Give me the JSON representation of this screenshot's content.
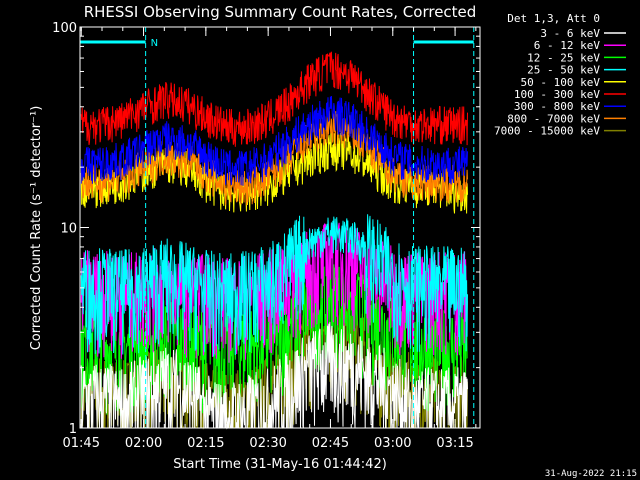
{
  "chart_data": {
    "type": "line",
    "title": "RHESSI Observing Summary Count Rates, Corrected",
    "xlabel": "Start Time (31-May-16 01:44:42)",
    "ylabel": "Corrected Count Rate (s⁻¹ detector⁻¹)",
    "yscale": "log",
    "ylim": [
      1,
      100
    ],
    "xlim": [
      "01:44:42",
      "03:21:00"
    ],
    "x_ticks": [
      "01:45",
      "02:00",
      "02:15",
      "02:30",
      "02:45",
      "03:00",
      "03:15"
    ],
    "y_ticks": [
      "1",
      "10",
      "100"
    ],
    "grid": false,
    "legend_position": "right",
    "legend_header": "Det 1,3, Att 0",
    "x": [
      "01:45",
      "01:50",
      "01:55",
      "02:00",
      "02:05",
      "02:10",
      "02:15",
      "02:20",
      "02:25",
      "02:30",
      "02:35",
      "02:40",
      "02:45",
      "02:50",
      "02:55",
      "03:00",
      "03:05",
      "03:10",
      "03:15",
      "03:18"
    ],
    "series": [
      {
        "name": "3 - 6 keV",
        "color": "#ffffff",
        "values": [
          1.4,
          1.4,
          1.3,
          1.5,
          1.7,
          1.6,
          1.2,
          1.1,
          1.2,
          1.3,
          1.6,
          2.0,
          2.2,
          2.1,
          1.8,
          1.5,
          1.3,
          1.3,
          1.3,
          1.3
        ]
      },
      {
        "name": "6 - 12 keV",
        "color": "#ff00ff",
        "values": [
          5.0,
          5.0,
          4.8,
          5.0,
          5.2,
          5.0,
          4.8,
          4.6,
          4.8,
          5.0,
          5.5,
          6.5,
          7.0,
          6.8,
          6.0,
          5.2,
          5.0,
          5.0,
          5.0,
          5.0
        ]
      },
      {
        "name": "12 - 25 keV",
        "color": "#00ff00",
        "values": [
          2.6,
          2.6,
          2.5,
          2.7,
          2.9,
          2.8,
          2.6,
          2.5,
          2.6,
          2.8,
          3.2,
          4.0,
          4.5,
          4.2,
          3.5,
          3.0,
          2.7,
          2.6,
          2.6,
          2.6
        ]
      },
      {
        "name": "25 - 50 keV",
        "color": "#00ffff",
        "values": [
          5.2,
          5.2,
          5.0,
          5.3,
          5.8,
          5.5,
          5.0,
          4.8,
          5.0,
          5.4,
          6.5,
          8.5,
          9.5,
          9.0,
          7.5,
          6.0,
          5.3,
          5.2,
          5.2,
          5.2
        ]
      },
      {
        "name": "50 - 100 keV",
        "color": "#ffff00",
        "values": [
          16,
          16,
          17,
          19,
          21,
          20,
          17,
          15,
          15,
          16,
          19,
          22,
          25,
          24,
          20,
          17,
          16,
          16,
          15,
          15
        ]
      },
      {
        "name": "100 - 300 keV",
        "color": "#ff0000",
        "values": [
          33,
          33,
          35,
          40,
          44,
          42,
          36,
          32,
          32,
          35,
          42,
          55,
          64,
          58,
          45,
          36,
          33,
          33,
          33,
          33
        ]
      },
      {
        "name": "300 - 800 keV",
        "color": "#0000ff",
        "values": [
          21,
          21,
          22,
          25,
          28,
          27,
          23,
          20,
          20,
          22,
          27,
          33,
          38,
          35,
          28,
          23,
          21,
          21,
          21,
          21
        ]
      },
      {
        "name": "800 - 7000 keV",
        "color": "#ff8000",
        "values": [
          17,
          17,
          18,
          20,
          23,
          22,
          19,
          16,
          16,
          18,
          22,
          28,
          32,
          30,
          24,
          19,
          17,
          17,
          17,
          17
        ]
      },
      {
        "name": "7000 - 15000 keV",
        "color": "#808000",
        "values": [
          1.5,
          1.5,
          1.4,
          1.6,
          1.8,
          1.7,
          1.4,
          1.3,
          1.3,
          1.5,
          2.0,
          2.6,
          2.9,
          2.7,
          2.2,
          1.7,
          1.5,
          1.5,
          1.5,
          1.5
        ]
      }
    ],
    "annotations": {
      "night_label": "N",
      "night_intervals": [
        [
          "01:44:42",
          "02:00:30"
        ],
        [
          "03:05:00",
          "03:19:30"
        ]
      ],
      "color": "#00ffff"
    }
  },
  "footer": {
    "timestamp": "31-Aug-2022 21:15"
  }
}
